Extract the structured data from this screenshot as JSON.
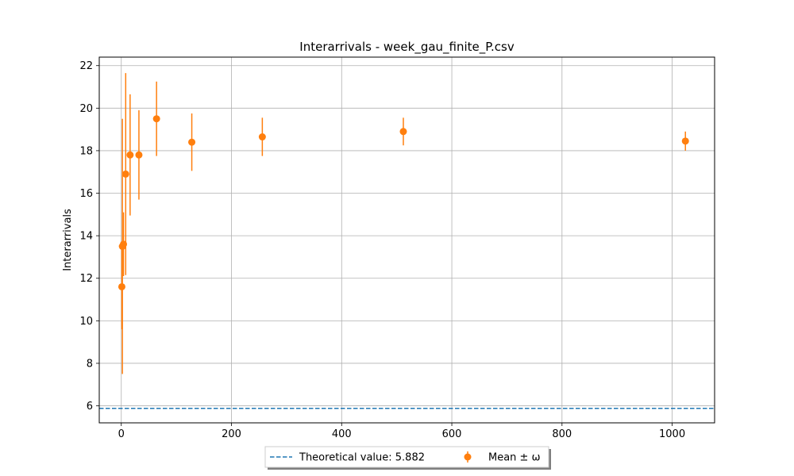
{
  "chart_data": {
    "type": "scatter",
    "title": "Interarrivals - week_gau_finite_P.csv",
    "xlabel": "",
    "ylabel": "Interarrivals",
    "xlim": [
      -40,
      1077
    ],
    "ylim": [
      5.2,
      22.4
    ],
    "xticks": [
      0,
      200,
      400,
      600,
      800,
      1000
    ],
    "yticks": [
      6,
      8,
      10,
      12,
      14,
      16,
      18,
      20,
      22
    ],
    "grid": true,
    "legend_placement": "bottom-center, below plot",
    "series": [
      {
        "name": "Mean ± ω",
        "kind": "errorbar",
        "color": "#ff7f0e",
        "points": [
          {
            "x": 1,
            "y": 11.6,
            "err": 2.0
          },
          {
            "x": 2,
            "y": 13.5,
            "err": 6.0
          },
          {
            "x": 4,
            "y": 13.6,
            "err": 1.5
          },
          {
            "x": 8,
            "y": 16.9,
            "err": 4.75
          },
          {
            "x": 16,
            "y": 17.8,
            "err": 2.85
          },
          {
            "x": 32,
            "y": 17.8,
            "err": 2.1
          },
          {
            "x": 64,
            "y": 19.5,
            "err": 1.75
          },
          {
            "x": 128,
            "y": 18.4,
            "err": 1.35
          },
          {
            "x": 256,
            "y": 18.65,
            "err": 0.9
          },
          {
            "x": 512,
            "y": 18.9,
            "err": 0.65
          },
          {
            "x": 1024,
            "y": 18.45,
            "err": 0.45
          }
        ]
      }
    ],
    "reference_line": {
      "name": "Theoretical value: 5.882",
      "y": 5.882,
      "style": "dashed",
      "color": "#1f77b4"
    }
  }
}
